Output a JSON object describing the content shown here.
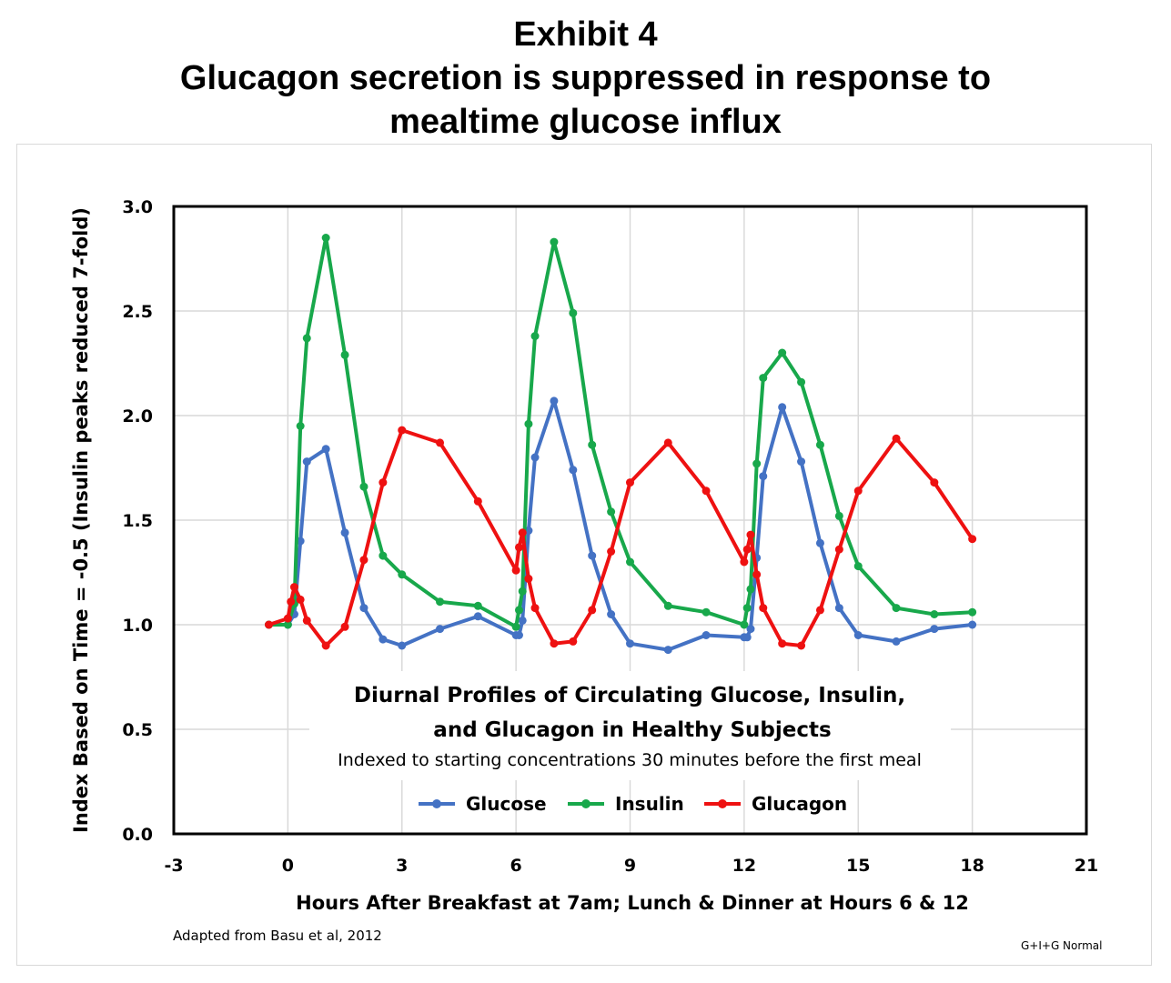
{
  "header": {
    "exhibit": "Exhibit 4",
    "title_line1": "Glucagon secretion is suppressed in response to",
    "title_line2": "mealtime glucose influx"
  },
  "footer": {
    "source": "Adapted from Basu et al, 2012",
    "credit": "G+I+G Normal"
  },
  "colors": {
    "glucose": "#4472C4",
    "insulin": "#18A84B",
    "glucagon": "#EE1111",
    "grid": "#d9d9d9",
    "axis": "#000000"
  },
  "chart_data": {
    "type": "line",
    "annotation_title_line1": "Diurnal Profiles of Circulating Glucose, Insulin,",
    "annotation_title_line2": "and Glucagon in Healthy Subjects",
    "annotation_subtitle": "Indexed to starting concentrations 30 minutes before the first meal",
    "xlabel": "Hours After Breakfast at 7am; Lunch & Dinner at Hours 6 & 12",
    "ylabel": "Index Based on Time = -0.5 (Insulin peaks reduced 7-fold)",
    "xlim": [
      -3,
      21
    ],
    "ylim": [
      0,
      3
    ],
    "xticks": [
      "-3",
      "0",
      "3",
      "6",
      "9",
      "12",
      "15",
      "18",
      "21"
    ],
    "yticks": [
      "0.0",
      "0.5",
      "1.0",
      "1.5",
      "2.0",
      "2.5",
      "3.0"
    ],
    "grid": true,
    "legend_position": "bottom-center",
    "series": [
      {
        "name": "Glucose",
        "x": [
          -0.5,
          0,
          0.17,
          0.33,
          0.5,
          1,
          1.5,
          2,
          2.5,
          3,
          4,
          5,
          6,
          6.08,
          6.17,
          6.33,
          6.5,
          7,
          7.5,
          8,
          8.5,
          9,
          10,
          11,
          12,
          12.08,
          12.17,
          12.33,
          12.5,
          13,
          13.5,
          14,
          14.5,
          15,
          16,
          17,
          18
        ],
        "y": [
          1.0,
          1.0,
          1.05,
          1.4,
          1.78,
          1.84,
          1.44,
          1.08,
          0.93,
          0.9,
          0.98,
          1.04,
          0.95,
          0.95,
          1.02,
          1.45,
          1.8,
          2.07,
          1.74,
          1.33,
          1.05,
          0.91,
          0.88,
          0.95,
          0.94,
          0.94,
          0.98,
          1.32,
          1.71,
          2.04,
          1.78,
          1.39,
          1.08,
          0.95,
          0.92,
          0.98,
          1.0
        ]
      },
      {
        "name": "Insulin",
        "x": [
          -0.5,
          0,
          0.17,
          0.33,
          0.5,
          1,
          1.5,
          2,
          2.5,
          3,
          4,
          5,
          6,
          6.08,
          6.17,
          6.33,
          6.5,
          7,
          7.5,
          8,
          8.5,
          9,
          10,
          11,
          12,
          12.08,
          12.17,
          12.33,
          12.5,
          13,
          13.5,
          14,
          14.5,
          15,
          16,
          17,
          18
        ],
        "y": [
          1.0,
          1.0,
          1.1,
          1.95,
          2.37,
          2.85,
          2.29,
          1.66,
          1.33,
          1.24,
          1.11,
          1.09,
          0.99,
          1.07,
          1.16,
          1.96,
          2.38,
          2.83,
          2.49,
          1.86,
          1.54,
          1.3,
          1.09,
          1.06,
          1.0,
          1.08,
          1.17,
          1.77,
          2.18,
          2.3,
          2.16,
          1.86,
          1.52,
          1.28,
          1.08,
          1.05,
          1.06
        ]
      },
      {
        "name": "Glucagon",
        "x": [
          -0.5,
          0,
          0.08,
          0.17,
          0.33,
          0.5,
          1,
          1.5,
          2,
          2.5,
          3,
          4,
          5,
          6,
          6.08,
          6.17,
          6.33,
          6.5,
          7,
          7.5,
          8,
          8.5,
          9,
          10,
          11,
          12,
          12.08,
          12.17,
          12.33,
          12.5,
          13,
          13.5,
          14,
          14.5,
          15,
          16,
          17,
          18
        ],
        "y": [
          1.0,
          1.03,
          1.11,
          1.18,
          1.12,
          1.02,
          0.9,
          0.99,
          1.31,
          1.68,
          1.93,
          1.87,
          1.59,
          1.26,
          1.37,
          1.44,
          1.22,
          1.08,
          0.91,
          0.92,
          1.07,
          1.35,
          1.68,
          1.87,
          1.64,
          1.3,
          1.36,
          1.43,
          1.24,
          1.08,
          0.91,
          0.9,
          1.07,
          1.36,
          1.64,
          1.89,
          1.68,
          1.41
        ]
      }
    ]
  }
}
